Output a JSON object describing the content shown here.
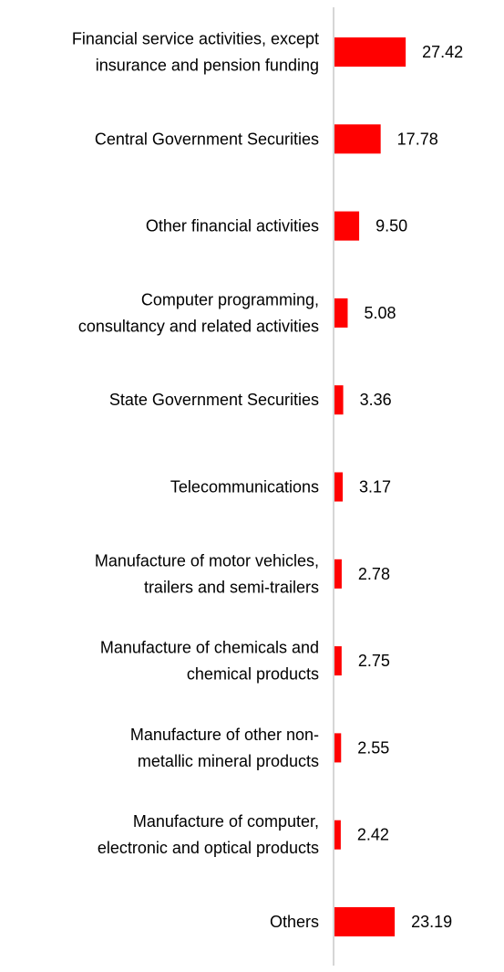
{
  "chart_data": {
    "type": "bar",
    "orientation": "horizontal",
    "categories": [
      [
        "Financial service activities, except",
        "insurance and pension funding"
      ],
      [
        "Central Government Securities"
      ],
      [
        "Other financial activities"
      ],
      [
        "Computer programming,",
        "consultancy and related activities"
      ],
      [
        "State Government Securities"
      ],
      [
        "Telecommunications"
      ],
      [
        "Manufacture of motor vehicles,",
        "trailers and semi-trailers"
      ],
      [
        "Manufacture of chemicals and",
        "chemical products"
      ],
      [
        "Manufacture of other non-",
        "metallic mineral products"
      ],
      [
        "Manufacture of computer,",
        "electronic and optical products"
      ],
      [
        "Others"
      ]
    ],
    "values": [
      27.42,
      17.78,
      9.5,
      5.08,
      3.36,
      3.17,
      2.78,
      2.75,
      2.55,
      2.42,
      23.19
    ],
    "value_labels": [
      "27.42",
      "17.78",
      "9.50",
      "5.08",
      "3.36",
      "3.17",
      "2.78",
      "2.75",
      "2.55",
      "2.42",
      "23.19"
    ],
    "bar_color": "#ff0000",
    "axis_color": "#c8c8c8",
    "grid": false,
    "legend": "none"
  }
}
